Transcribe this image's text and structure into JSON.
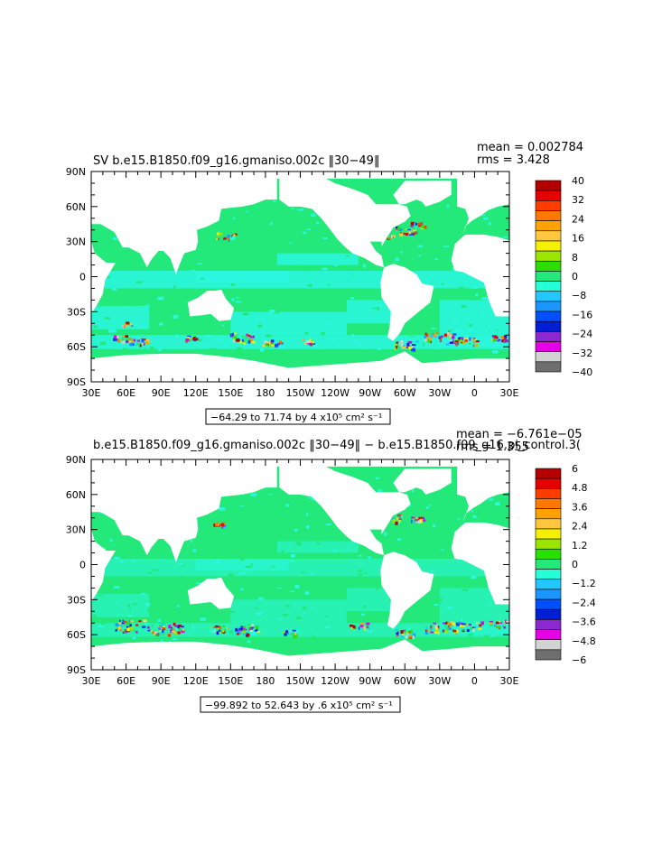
{
  "chart_data": [
    {
      "type": "heatmap",
      "title": "SV b.e15.B1850.f09_g16.gmaniso.002c ‖30−49‖",
      "stats": {
        "mean": "mean = 0.002784",
        "rms": "rms = 3.428"
      },
      "y_ticks": [
        "90N",
        "60N",
        "30N",
        "0",
        "30S",
        "60S",
        "90S"
      ],
      "x_ticks": [
        "30E",
        "60E",
        "90E",
        "120E",
        "150E",
        "180",
        "150W",
        "120W",
        "90W",
        "60W",
        "30W",
        "0",
        "30E"
      ],
      "xlim": [
        30,
        390
      ],
      "ylim": [
        -90,
        90
      ],
      "range_label": "−64.29 to 71.74 by 4 x10⁵ cm² s⁻¹",
      "colorbar": {
        "labels": [
          "40",
          "32",
          "24",
          "16",
          "8",
          "0",
          "−8",
          "−16",
          "−24",
          "−32",
          "−40"
        ],
        "colors": [
          "#b40000",
          "#e60000",
          "#ff3c00",
          "#ff7800",
          "#ffa200",
          "#ffc83c",
          "#f5f000",
          "#9be600",
          "#29e000",
          "#23e87a",
          "#24ffd8",
          "#20c8ff",
          "#1996ff",
          "#0050ff",
          "#001ed2",
          "#8c28d2",
          "#e600e6",
          "#d2d2d2",
          "#6e6e6e"
        ]
      },
      "dominant_color": "#23e87a",
      "secondary_color": "#2cf7e2"
    },
    {
      "type": "heatmap",
      "title": "b.e15.B1850.f09_g16.gmaniso.002c ‖30−49‖ − b.e15.B1850.f09_g16.pi_control.3(",
      "stats": {
        "mean": "mean = −6.761e−05",
        "rms": "rms = 1.355"
      },
      "y_ticks": [
        "90N",
        "60N",
        "30N",
        "0",
        "30S",
        "60S",
        "90S"
      ],
      "x_ticks": [
        "30E",
        "60E",
        "90E",
        "120E",
        "150E",
        "180",
        "150W",
        "120W",
        "90W",
        "60W",
        "30W",
        "0",
        "30E"
      ],
      "xlim": [
        30,
        390
      ],
      "ylim": [
        -90,
        90
      ],
      "range_label": "−99.892 to 52.643 by .6 x10⁵ cm² s⁻¹",
      "colorbar": {
        "labels": [
          "6",
          "4.8",
          "3.6",
          "2.4",
          "1.2",
          "0",
          "−1.2",
          "−2.4",
          "−3.6",
          "−4.8",
          "−6"
        ],
        "colors": [
          "#b40000",
          "#e60000",
          "#ff3c00",
          "#ff7800",
          "#ffa200",
          "#ffc83c",
          "#f5f000",
          "#9be600",
          "#29e000",
          "#23e87a",
          "#24ffd8",
          "#20c8ff",
          "#1996ff",
          "#0050ff",
          "#001ed2",
          "#8c28d2",
          "#e600e6",
          "#d2d2d2",
          "#6e6e6e"
        ]
      },
      "dominant_color": "#23e87a",
      "secondary_color": "#2cf7e2"
    }
  ]
}
